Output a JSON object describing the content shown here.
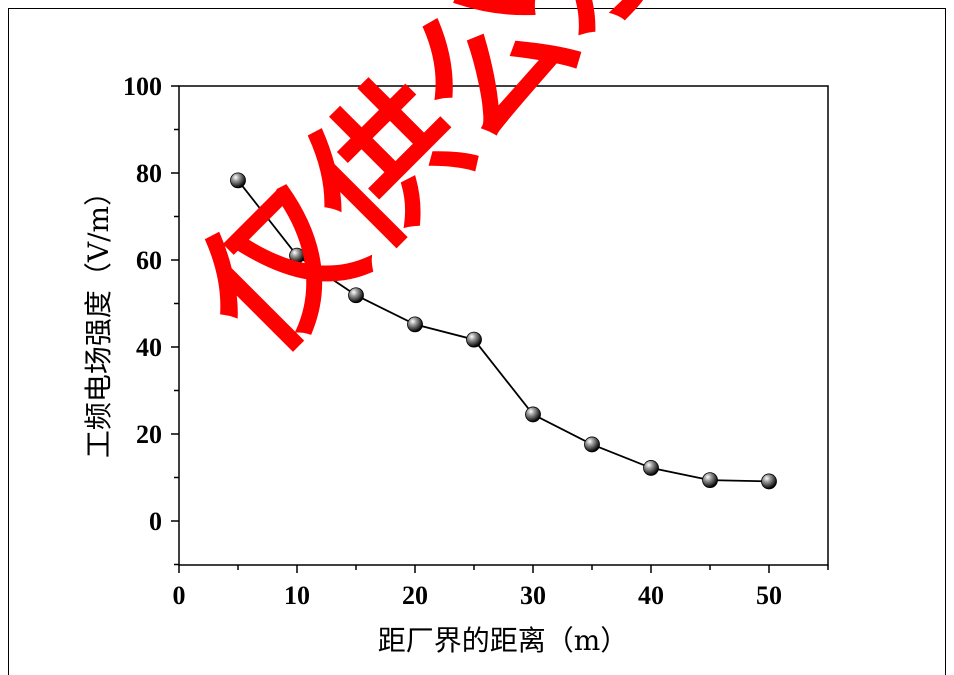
{
  "chart_data": {
    "type": "line",
    "title": "",
    "xlabel": "距厂界的距离（m）",
    "ylabel": "工频电场强度（V/m）",
    "xlim": [
      0,
      55
    ],
    "ylim": [
      -10,
      100
    ],
    "x_ticks": [
      0,
      10,
      20,
      30,
      40,
      50
    ],
    "y_ticks": [
      0,
      20,
      40,
      60,
      80,
      100
    ],
    "grid": false,
    "series": [
      {
        "x": [
          5,
          10,
          15,
          20,
          25,
          30,
          35,
          40,
          45,
          50
        ],
        "y": [
          78.3,
          61.0,
          51.9,
          45.2,
          41.7,
          24.5,
          17.6,
          12.2,
          9.4,
          9.1
        ],
        "marker": "sphere",
        "color": "#000000"
      }
    ]
  },
  "watermark": {
    "text": "仅供公示",
    "color": "#ff0000"
  }
}
